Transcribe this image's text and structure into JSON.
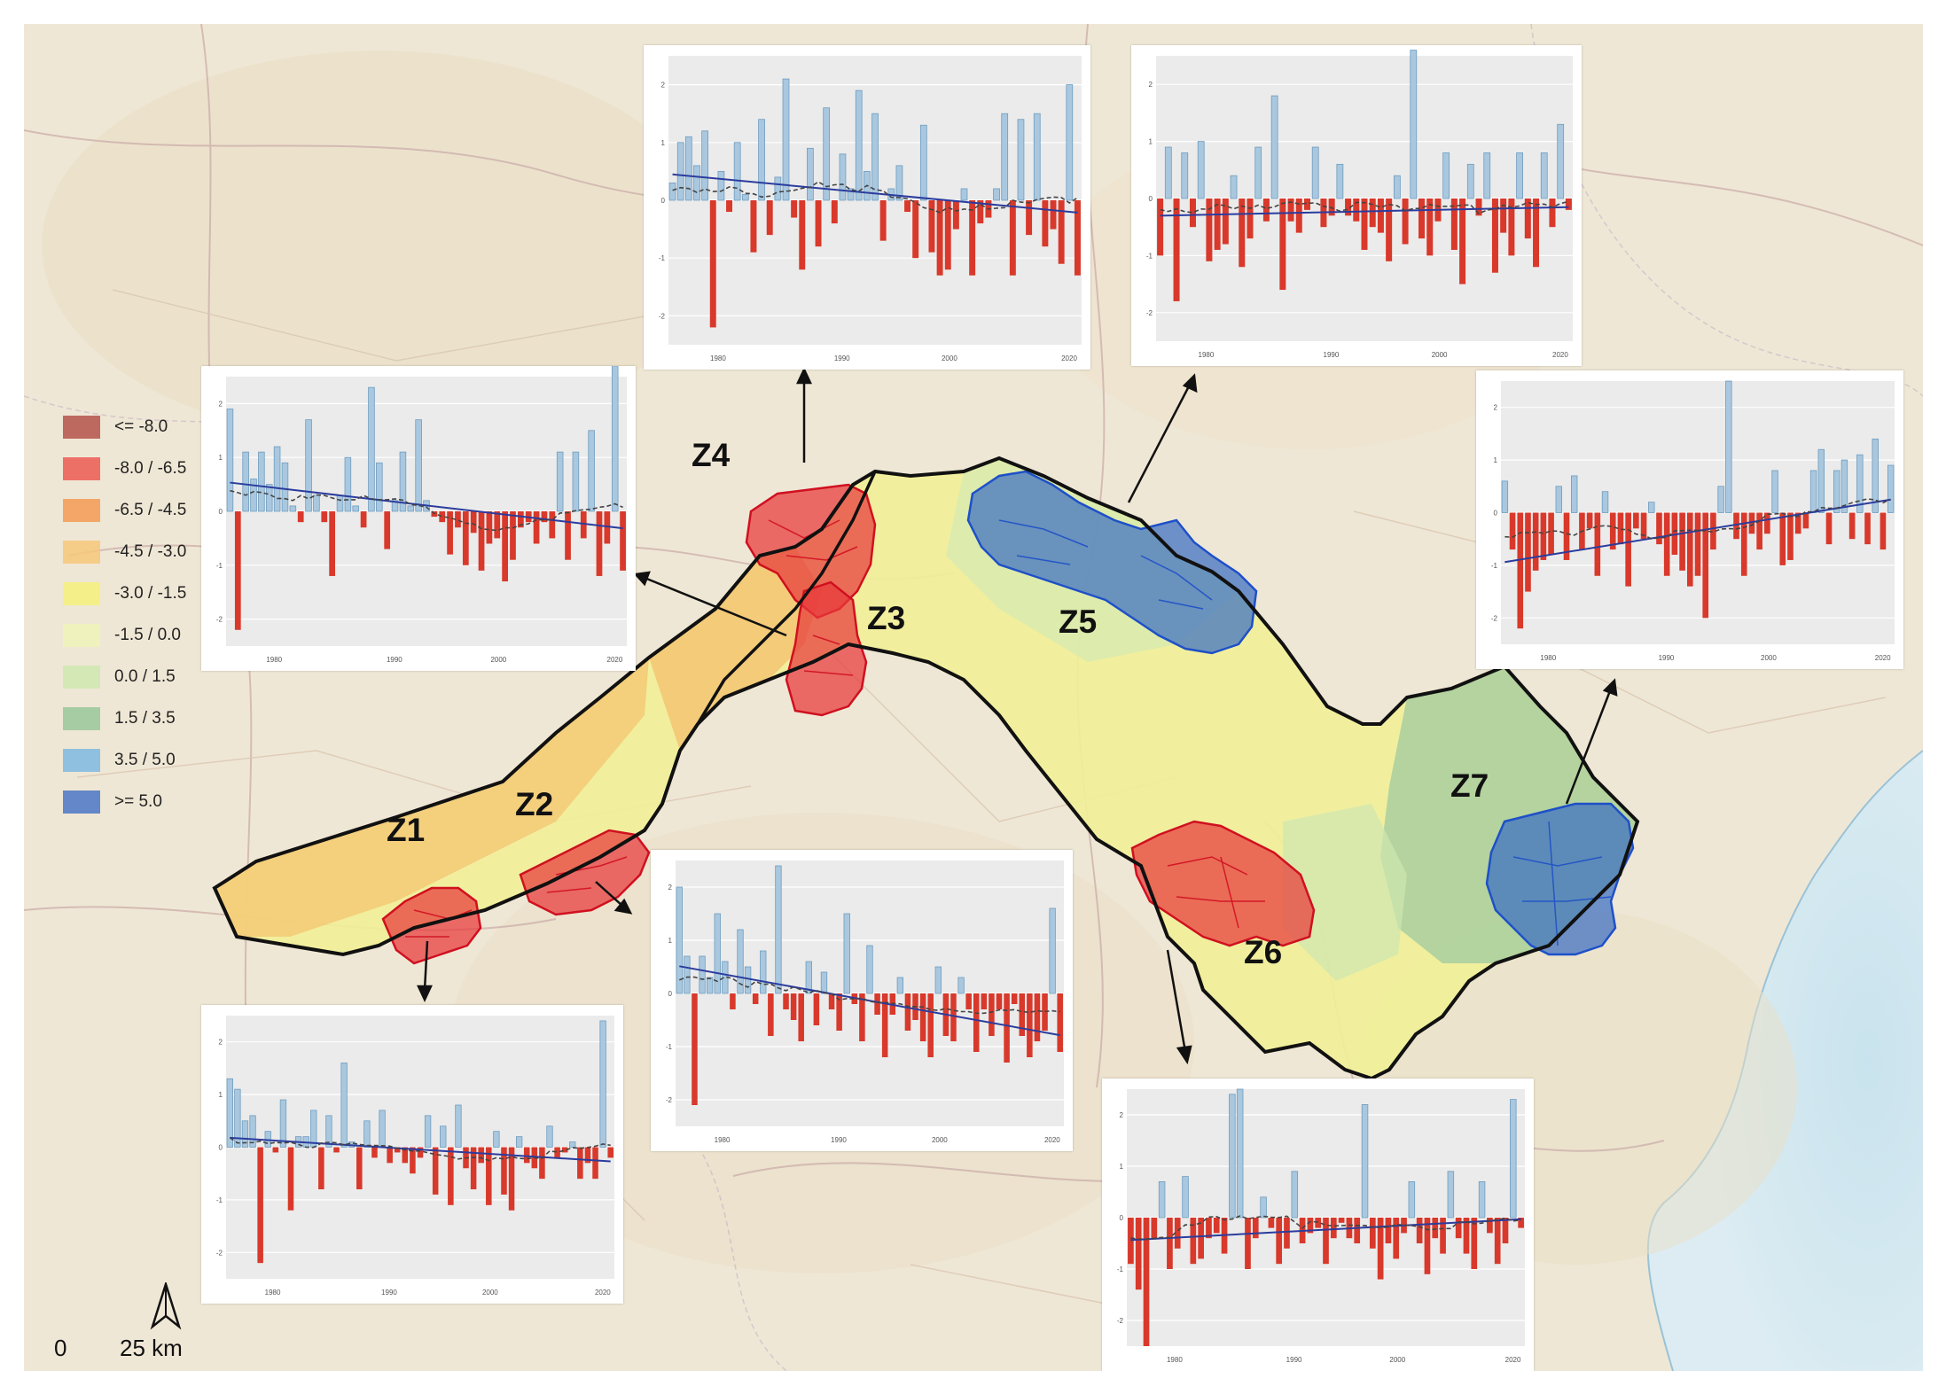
{
  "legend": {
    "items": [
      {
        "label": "<= -8.0",
        "color": "#b5524a"
      },
      {
        "label": "-8.0 / -6.5",
        "color": "#ec5a54"
      },
      {
        "label": "-6.5 / -4.5",
        "color": "#f39a55"
      },
      {
        "label": "-4.5 / -3.0",
        "color": "#f7c77b"
      },
      {
        "label": "-3.0 / -1.5",
        "color": "#f4f07a"
      },
      {
        "label": "-1.5 / 0.0",
        "color": "#eff3b8"
      },
      {
        "label": "0.0 / 1.5",
        "color": "#cfe8b0"
      },
      {
        "label": "1.5 / 3.5",
        "color": "#99c79a"
      },
      {
        "label": "3.5 / 5.0",
        "color": "#7fb8e0"
      },
      {
        "label": ">= 5.0",
        "color": "#4a76c6"
      }
    ]
  },
  "zones": [
    {
      "id": "Z1"
    },
    {
      "id": "Z2"
    },
    {
      "id": "Z3"
    },
    {
      "id": "Z4"
    },
    {
      "id": "Z5"
    },
    {
      "id": "Z6"
    },
    {
      "id": "Z7"
    }
  ],
  "scale_bar": {
    "zero": "0",
    "distance": "25 km"
  },
  "colors": {
    "positive_bar": "#a9c8df",
    "positive_edge": "#6f9cbf",
    "negative_bar": "#d8392b",
    "trend_line": "#2b3c9e",
    "smooth_line": "#444444",
    "panel_bg": "#ebebeb",
    "negative_zone": "#e8393a",
    "positive_zone": "#3c6fc4",
    "basin_outline": "#111111"
  },
  "chart_data": [
    {
      "type": "bar",
      "zone": "Z4",
      "x_ticks": [
        "1980",
        "1990",
        "2000",
        "2020"
      ],
      "y_ticks": [
        "2",
        "1",
        "0",
        "-1",
        "-2"
      ],
      "ylim": [
        -2.5,
        2.5
      ],
      "values": [
        0.3,
        1.0,
        1.1,
        0.6,
        1.2,
        -2.2,
        0.5,
        -0.2,
        1.0,
        0.1,
        -0.9,
        1.4,
        -0.6,
        0.4,
        2.1,
        -0.3,
        -1.2,
        0.9,
        -0.8,
        1.6,
        -0.4,
        0.8,
        0.2,
        1.9,
        0.5,
        1.5,
        -0.7,
        0.2,
        0.6,
        -0.2,
        -1.0,
        1.3,
        -0.9,
        -1.3,
        -1.2,
        -0.5,
        0.2,
        -1.3,
        -0.4,
        -0.3,
        0.2,
        1.5,
        -1.3,
        1.4,
        -0.6,
        1.5,
        -0.8,
        -0.5,
        -1.1,
        2.0,
        -1.3
      ]
    },
    {
      "type": "bar",
      "zone": "Z5",
      "x_ticks": [
        "1980",
        "1990",
        "2000",
        "2020"
      ],
      "y_ticks": [
        "2",
        "1",
        "0",
        "-1",
        "-2"
      ],
      "ylim": [
        -2.5,
        2.5
      ],
      "values": [
        -1.0,
        0.9,
        -1.8,
        0.8,
        -0.5,
        1.0,
        -1.1,
        -0.9,
        -0.8,
        0.4,
        -1.2,
        -0.7,
        0.9,
        -0.4,
        1.8,
        -1.6,
        -0.4,
        -0.6,
        -0.2,
        0.9,
        -0.5,
        -0.3,
        0.6,
        -0.3,
        -0.4,
        -0.9,
        -0.5,
        -0.6,
        -1.1,
        0.4,
        -0.8,
        2.6,
        -0.7,
        -1.0,
        -0.4,
        0.8,
        -0.9,
        -1.5,
        0.6,
        -0.3,
        0.8,
        -1.3,
        -0.6,
        -1.0,
        0.8,
        -0.7,
        -1.2,
        0.8,
        -0.5,
        1.3,
        -0.2
      ]
    },
    {
      "type": "bar",
      "zone": "Z1",
      "x_ticks": [
        "1980",
        "1990",
        "2000",
        "2020"
      ],
      "y_ticks": [
        "2",
        "1",
        "0",
        "-1",
        "-2"
      ],
      "ylim": [
        -2.5,
        2.5
      ],
      "values": [
        1.3,
        1.1,
        0.5,
        0.6,
        -2.2,
        0.3,
        -0.1,
        0.9,
        -1.2,
        0.2,
        0.2,
        0.7,
        -0.8,
        0.6,
        -0.1,
        1.6,
        0.1,
        -0.8,
        0.5,
        -0.2,
        0.7,
        -0.3,
        -0.1,
        -0.3,
        -0.5,
        -0.2,
        0.6,
        -0.9,
        0.4,
        -1.1,
        0.8,
        -0.4,
        -0.8,
        -0.3,
        -1.1,
        0.3,
        -0.9,
        -1.2,
        0.2,
        -0.3,
        -0.4,
        -0.6,
        0.4,
        -0.2,
        -0.1,
        0.1,
        -0.6,
        -0.3,
        -0.6,
        2.4,
        -0.2
      ]
    },
    {
      "type": "bar",
      "zone": "Z2",
      "x_ticks": [
        "1980",
        "1990",
        "2000",
        "2020"
      ],
      "y_ticks": [
        "2",
        "1",
        "0",
        "-1",
        "-2"
      ],
      "ylim": [
        -2.5,
        2.5
      ],
      "values": [
        2.0,
        0.7,
        -2.1,
        0.7,
        0.3,
        1.5,
        0.6,
        -0.3,
        1.2,
        0.5,
        -0.2,
        0.8,
        -0.8,
        2.4,
        -0.3,
        -0.5,
        -0.9,
        0.6,
        -0.6,
        0.4,
        -0.3,
        -0.7,
        1.5,
        -0.2,
        -0.9,
        0.9,
        -0.4,
        -1.2,
        -0.4,
        0.3,
        -0.7,
        -0.5,
        -0.9,
        -1.2,
        0.5,
        -0.8,
        -0.9,
        0.3,
        -0.3,
        -1.1,
        -0.3,
        -0.8,
        -0.3,
        -1.3,
        -0.2,
        -0.8,
        -1.2,
        -0.9,
        -0.7,
        1.6,
        -1.1
      ]
    },
    {
      "type": "bar",
      "zone": "Z6",
      "x_ticks": [
        "1980",
        "1990",
        "2000",
        "2020"
      ],
      "y_ticks": [
        "2",
        "1",
        "0",
        "-1",
        "-2"
      ],
      "ylim": [
        -2.5,
        2.5
      ],
      "values": [
        -0.9,
        -1.4,
        -2.5,
        -0.4,
        0.7,
        -1.0,
        -0.6,
        0.8,
        -0.9,
        -0.8,
        -0.4,
        -0.3,
        -0.7,
        2.4,
        2.5,
        -1.0,
        -0.4,
        0.4,
        -0.2,
        -0.9,
        -0.6,
        0.9,
        -0.5,
        -0.3,
        -0.2,
        -0.9,
        -0.4,
        -0.1,
        -0.4,
        -0.5,
        2.2,
        -0.6,
        -1.2,
        -0.5,
        -0.8,
        -0.3,
        0.7,
        -0.5,
        -1.1,
        -0.4,
        -0.7,
        0.9,
        -0.4,
        -0.7,
        -1.0,
        0.7,
        -0.3,
        -0.9,
        -0.5,
        2.3,
        -0.2
      ]
    },
    {
      "type": "bar",
      "zone": "Z3",
      "x_ticks": [
        "1980",
        "1990",
        "2000",
        "2020"
      ],
      "y_ticks": [
        "2",
        "1",
        "0",
        "-1",
        "-2"
      ],
      "ylim": [
        -2.5,
        2.5
      ],
      "values": [
        1.9,
        -2.2,
        1.1,
        0.6,
        1.1,
        0.5,
        1.2,
        0.9,
        0.1,
        -0.2,
        1.7,
        0.3,
        -0.2,
        -1.2,
        0.3,
        1.0,
        0.1,
        -0.3,
        2.3,
        0.9,
        -0.7,
        0.2,
        1.1,
        0.1,
        1.7,
        0.2,
        -0.1,
        -0.2,
        -0.8,
        -0.3,
        -1.0,
        -0.4,
        -1.1,
        -0.6,
        -0.5,
        -1.3,
        -0.9,
        -0.3,
        -0.2,
        -0.6,
        -0.2,
        -0.5,
        1.1,
        -0.9,
        1.1,
        -0.5,
        1.5,
        -1.2,
        -0.6,
        2.7,
        -1.1
      ]
    },
    {
      "type": "bar",
      "zone": "Z7",
      "x_ticks": [
        "1980",
        "1990",
        "2000",
        "2020"
      ],
      "y_ticks": [
        "2",
        "1",
        "0",
        "-1",
        "-2"
      ],
      "ylim": [
        -2.5,
        2.5
      ],
      "values": [
        0.6,
        -0.7,
        -2.2,
        -1.5,
        -1.1,
        -0.9,
        -0.8,
        0.5,
        -0.9,
        0.7,
        -0.7,
        -0.3,
        -1.2,
        0.4,
        -0.7,
        -0.6,
        -1.4,
        -0.3,
        -0.5,
        0.2,
        -0.6,
        -1.2,
        -0.8,
        -1.1,
        -1.4,
        -1.2,
        -2.0,
        -0.7,
        0.5,
        2.5,
        -0.5,
        -1.2,
        -0.4,
        -0.7,
        -0.4,
        0.8,
        -1.0,
        -0.9,
        -0.4,
        -0.3,
        0.8,
        1.2,
        -0.6,
        0.8,
        1.0,
        -0.5,
        1.1,
        -0.6,
        1.4,
        -0.7,
        0.9
      ]
    }
  ]
}
